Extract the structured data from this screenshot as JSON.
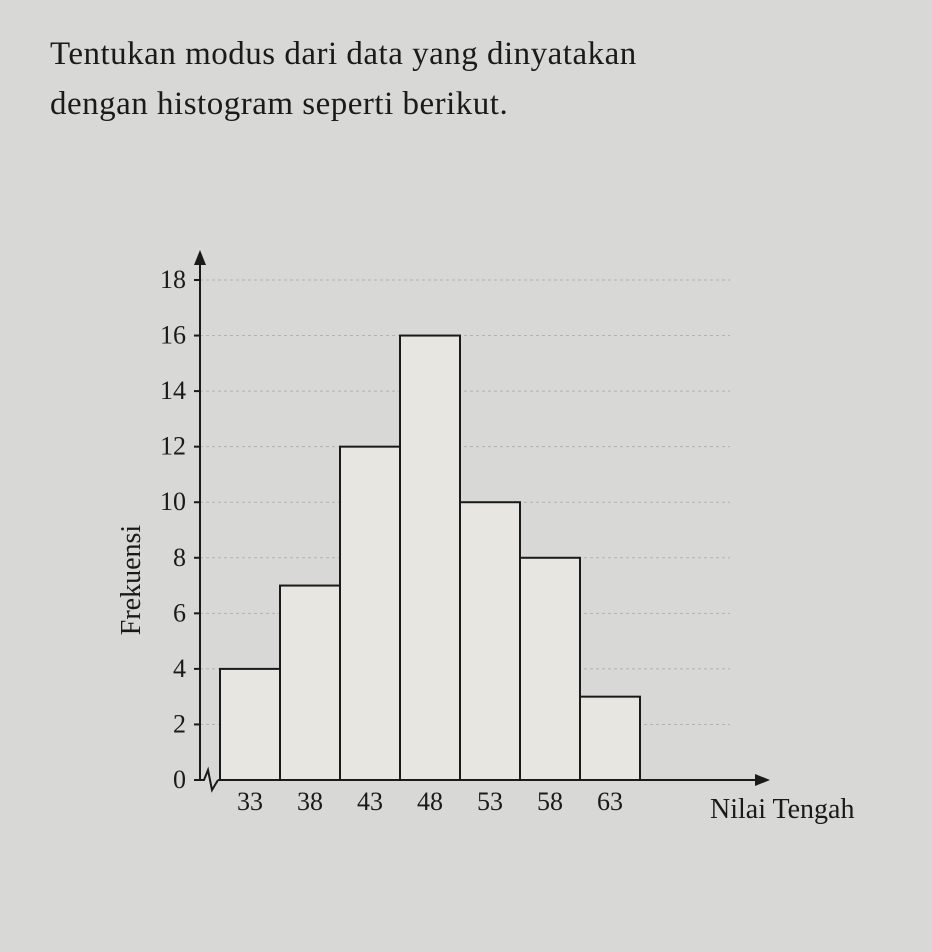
{
  "question": {
    "line1": "Tentukan modus dari data yang dinyatakan",
    "line2": "dengan histogram seperti berikut."
  },
  "histogram": {
    "type": "histogram",
    "categories": [
      33,
      38,
      43,
      48,
      53,
      58,
      63
    ],
    "values": [
      4,
      7,
      12,
      16,
      10,
      8,
      3
    ],
    "ylabel": "Frekuensi",
    "xlabel": "Nilai Tengah",
    "ylim": [
      0,
      18
    ],
    "ytick_start": 0,
    "ytick_step": 2,
    "ytick_end": 18,
    "bar_fill": "#e8e6e0",
    "bar_stroke": "#1a1a1a",
    "background_color": "#d8d9d6",
    "grid_color": "#999999",
    "axis_color": "#1a1a1a",
    "label_fontsize": 26,
    "title_fontsize": 28,
    "bar_width_ratio": 1.0
  }
}
